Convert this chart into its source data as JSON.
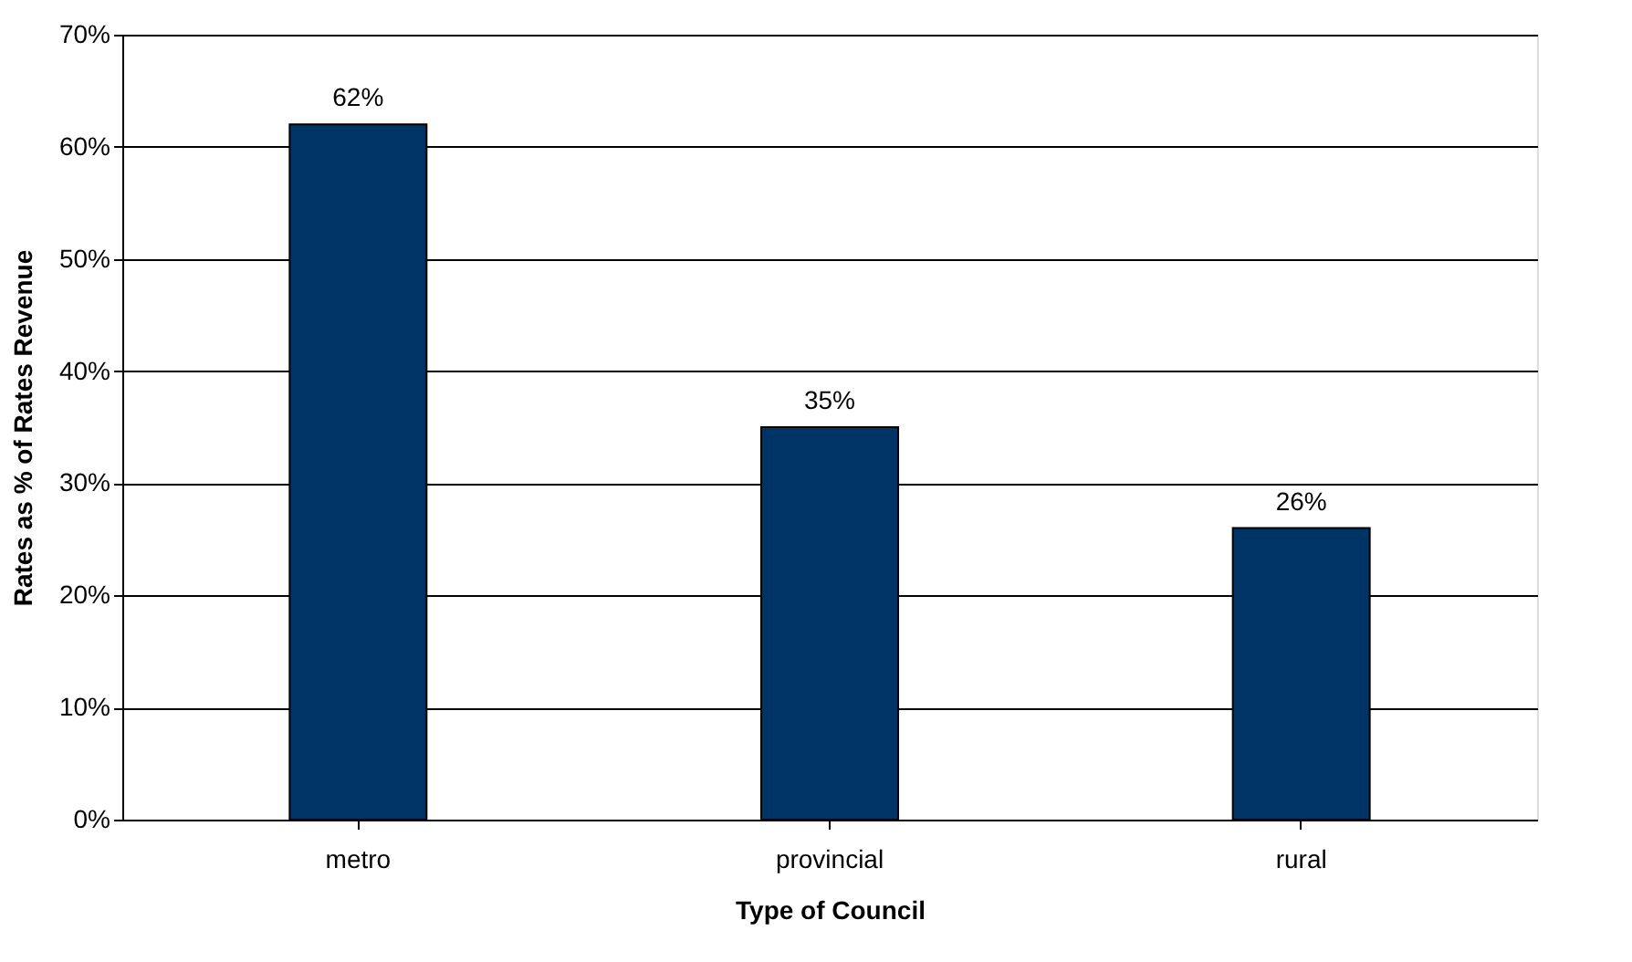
{
  "chart_data": {
    "type": "bar",
    "xlabel": "Type of Council",
    "ylabel": "Rates as % of Rates Revenue",
    "categories": [
      "metro",
      "provincial",
      "rural"
    ],
    "values": [
      62,
      35,
      26
    ],
    "color": "#003366",
    "value_labels": [
      "62%",
      "35%",
      "26%"
    ],
    "ylim": [
      0,
      70
    ],
    "yticks": [
      {
        "value": 0,
        "label": "0%"
      },
      {
        "value": 10,
        "label": "10%"
      },
      {
        "value": 20,
        "label": "20%"
      },
      {
        "value": 30,
        "label": "30%"
      },
      {
        "value": 40,
        "label": "40%"
      },
      {
        "value": 50,
        "label": "50%"
      },
      {
        "value": 60,
        "label": "60%"
      },
      {
        "value": 70,
        "label": "70%"
      }
    ],
    "grid": "y"
  }
}
